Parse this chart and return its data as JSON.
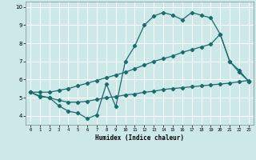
{
  "xlabel": "Humidex (Indice chaleur)",
  "bg_color": "#cce8e8",
  "grid_color": "#aacccc",
  "line_color": "#1a6b6b",
  "xlim": [
    -0.5,
    23.5
  ],
  "ylim": [
    3.5,
    10.3
  ],
  "xticks": [
    0,
    1,
    2,
    3,
    4,
    5,
    6,
    7,
    8,
    9,
    10,
    11,
    12,
    13,
    14,
    15,
    16,
    17,
    18,
    19,
    20,
    21,
    22,
    23
  ],
  "yticks": [
    4,
    5,
    6,
    7,
    8,
    9,
    10
  ],
  "line1_x": [
    0,
    1,
    2,
    3,
    4,
    5,
    6,
    7,
    8,
    9,
    10,
    11,
    12,
    13,
    14,
    15,
    16,
    17,
    18,
    19,
    20,
    21,
    22,
    23
  ],
  "line1_y": [
    5.3,
    5.05,
    5.0,
    4.55,
    4.25,
    4.15,
    3.85,
    4.05,
    5.75,
    4.5,
    7.0,
    7.85,
    9.0,
    9.5,
    9.7,
    9.55,
    9.3,
    9.7,
    9.55,
    9.4,
    8.5,
    7.0,
    6.4,
    5.9
  ],
  "line2_x": [
    0,
    1,
    2,
    3,
    4,
    5,
    6,
    7,
    8,
    9,
    10,
    11,
    12,
    13,
    14,
    15,
    16,
    17,
    18,
    19,
    20,
    21,
    22,
    23
  ],
  "line2_y": [
    5.3,
    5.3,
    5.3,
    5.4,
    5.5,
    5.65,
    5.8,
    5.95,
    6.1,
    6.25,
    6.4,
    6.6,
    6.8,
    7.0,
    7.15,
    7.3,
    7.5,
    7.65,
    7.8,
    7.95,
    8.5,
    7.0,
    6.5,
    5.9
  ],
  "line3_x": [
    0,
    1,
    2,
    3,
    4,
    5,
    6,
    7,
    8,
    9,
    10,
    11,
    12,
    13,
    14,
    15,
    16,
    17,
    18,
    19,
    20,
    21,
    22,
    23
  ],
  "line3_y": [
    5.3,
    5.1,
    5.0,
    4.85,
    4.75,
    4.75,
    4.8,
    4.9,
    5.0,
    5.05,
    5.15,
    5.2,
    5.3,
    5.35,
    5.45,
    5.5,
    5.55,
    5.6,
    5.65,
    5.7,
    5.75,
    5.8,
    5.88,
    5.95
  ]
}
